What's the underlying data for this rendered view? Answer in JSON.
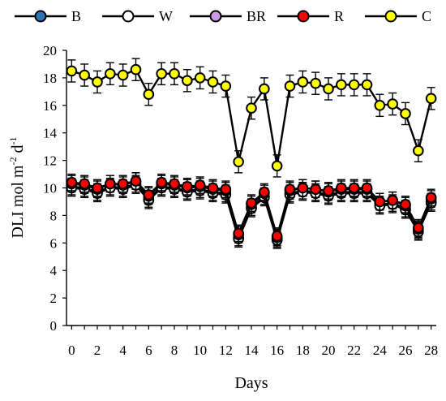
{
  "chart_data": {
    "type": "line",
    "xlabel": "Days",
    "ylabel": {
      "base": "DLI mol m",
      "exp1": "-2",
      "mid": " d",
      "exp2": "-1"
    },
    "x": [
      0,
      1,
      2,
      3,
      4,
      5,
      6,
      7,
      8,
      9,
      10,
      11,
      12,
      13,
      14,
      15,
      16,
      17,
      18,
      19,
      20,
      21,
      22,
      23,
      24,
      25,
      26,
      27,
      28
    ],
    "xticks": [
      0,
      2,
      4,
      6,
      8,
      10,
      12,
      14,
      16,
      18,
      20,
      22,
      24,
      26,
      28
    ],
    "xlim": [
      -0.4,
      28.4
    ],
    "ylim": [
      0,
      20
    ],
    "yticks": [
      0,
      2,
      4,
      6,
      8,
      10,
      12,
      14,
      16,
      18,
      20
    ],
    "grid": false,
    "legend_position": "top",
    "series": [
      {
        "name": "B",
        "color": "#2e75b6",
        "error": 0.6,
        "values": [
          10.1,
          10.0,
          9.7,
          10.1,
          10.0,
          10.3,
          9.2,
          10.1,
          10.0,
          9.8,
          9.9,
          9.7,
          9.6,
          6.4,
          8.6,
          9.4,
          6.3,
          9.6,
          9.8,
          9.7,
          9.5,
          9.7,
          9.7,
          9.7,
          8.8,
          8.9,
          8.5,
          6.9,
          9.0
        ]
      },
      {
        "name": "W",
        "color": "#ffffff",
        "error": 0.6,
        "values": [
          10.0,
          9.9,
          9.6,
          10.0,
          9.9,
          10.2,
          9.1,
          10.0,
          9.9,
          9.7,
          9.8,
          9.6,
          9.5,
          6.3,
          8.5,
          9.3,
          6.2,
          9.5,
          9.7,
          9.6,
          9.4,
          9.6,
          9.6,
          9.6,
          8.7,
          8.8,
          8.4,
          6.8,
          8.9
        ]
      },
      {
        "name": "BR",
        "color": "#cc99e6",
        "error": 0.6,
        "values": [
          10.3,
          10.2,
          9.9,
          10.3,
          10.2,
          10.5,
          9.4,
          10.3,
          10.2,
          10.0,
          10.1,
          9.9,
          9.8,
          6.6,
          8.8,
          9.6,
          6.4,
          9.8,
          10.0,
          9.9,
          9.7,
          9.9,
          9.9,
          9.9,
          9.0,
          9.1,
          8.7,
          7.0,
          9.2
        ]
      },
      {
        "name": "R",
        "color": "#ff0000",
        "error": 0.6,
        "values": [
          10.4,
          10.3,
          10.0,
          10.3,
          10.3,
          10.5,
          9.5,
          10.4,
          10.3,
          10.1,
          10.2,
          10.0,
          9.9,
          6.7,
          8.9,
          9.7,
          6.5,
          9.9,
          10.0,
          9.9,
          9.8,
          10.0,
          10.0,
          10.0,
          9.0,
          9.1,
          8.8,
          7.1,
          9.3
        ]
      },
      {
        "name": "C",
        "color": "#ffff00",
        "error": 0.8,
        "values": [
          18.5,
          18.2,
          17.7,
          18.3,
          18.2,
          18.6,
          16.8,
          18.3,
          18.3,
          17.8,
          18.0,
          17.7,
          17.4,
          11.9,
          15.8,
          17.2,
          11.6,
          17.4,
          17.7,
          17.6,
          17.2,
          17.5,
          17.5,
          17.5,
          16.0,
          16.1,
          15.4,
          12.7,
          16.5
        ]
      }
    ]
  }
}
